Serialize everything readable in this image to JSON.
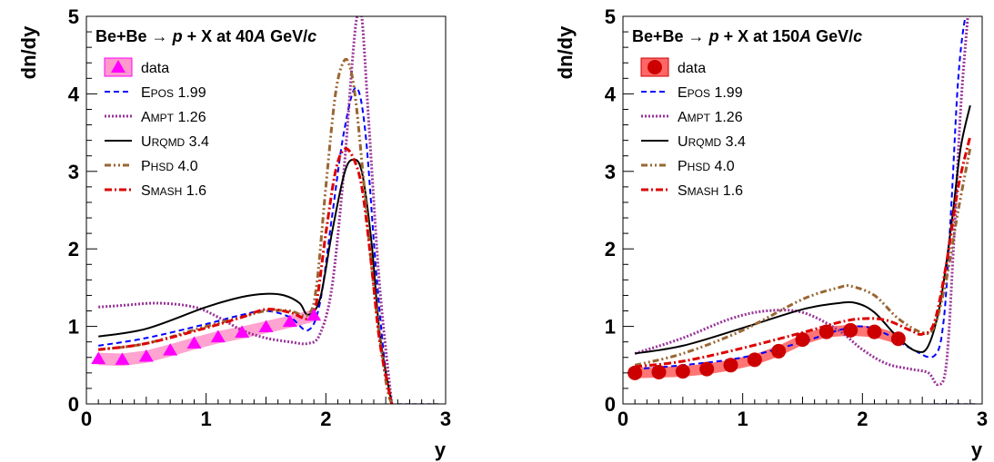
{
  "chart_data": [
    {
      "type": "line",
      "title_parts": [
        "Be+Be",
        "→",
        "p",
        "+ X at 40",
        "A",
        " GeV/",
        "c"
      ],
      "xlabel": "y",
      "ylabel": "dn/dy",
      "xlim": [
        0,
        3
      ],
      "ylim": [
        0,
        5
      ],
      "x_ticks": [
        "0",
        "1",
        "2",
        "3"
      ],
      "y_ticks": [
        "0",
        "1",
        "2",
        "3",
        "4",
        "5"
      ],
      "grid": false,
      "legend_position": "top-left",
      "legend": [
        {
          "label": "data",
          "style": "data"
        },
        {
          "label": "EPOS 1.99",
          "style": "EPOS"
        },
        {
          "label": "AMPT 1.26",
          "style": "AMPT"
        },
        {
          "label": "URQMD 3.4",
          "style": "URQMD"
        },
        {
          "label": "PHSD 4.0",
          "style": "PHSD"
        },
        {
          "label": "SMASH 1.6",
          "style": "SMASH"
        }
      ],
      "data": {
        "marker": "triangle",
        "color": "#ff00ff",
        "band_color": "#ff99cc",
        "x": [
          0.1,
          0.3,
          0.5,
          0.7,
          0.9,
          1.1,
          1.3,
          1.5,
          1.7,
          1.9
        ],
        "y": [
          0.58,
          0.57,
          0.61,
          0.69,
          0.78,
          0.86,
          0.92,
          0.99,
          1.06,
          1.14
        ],
        "band_halfwidth": 0.08
      },
      "series": [
        {
          "name": "EPOS",
          "color": "#0000ff",
          "dash": "6,4",
          "width": 2,
          "x": [
            0.1,
            0.5,
            1.0,
            1.3,
            1.5,
            1.7,
            1.85,
            1.95,
            2.05,
            2.15,
            2.25,
            2.33,
            2.42,
            2.5,
            2.55
          ],
          "y": [
            0.75,
            0.85,
            1.03,
            1.15,
            1.2,
            1.12,
            0.95,
            1.3,
            2.4,
            3.5,
            4.08,
            3.5,
            1.7,
            0.4,
            0.0
          ]
        },
        {
          "name": "AMPT",
          "color": "#993399",
          "dash": "2,2",
          "width": 3,
          "x": [
            0.1,
            0.3,
            0.6,
            0.9,
            1.1,
            1.3,
            1.5,
            1.7,
            1.85,
            1.95,
            2.05,
            2.15,
            2.22,
            2.26,
            2.3,
            2.36,
            2.45,
            2.55
          ],
          "y": [
            1.25,
            1.27,
            1.3,
            1.25,
            1.12,
            0.95,
            0.85,
            0.8,
            0.78,
            0.9,
            1.5,
            3.0,
            4.4,
            5.0,
            5.0,
            3.6,
            1.5,
            0.0
          ]
        },
        {
          "name": "URQMD",
          "color": "#000000",
          "dash": "",
          "width": 2,
          "x": [
            0.1,
            0.5,
            1.0,
            1.3,
            1.5,
            1.65,
            1.78,
            1.85,
            1.95,
            2.05,
            2.15,
            2.22,
            2.3,
            2.38,
            2.45,
            2.55
          ],
          "y": [
            0.87,
            0.97,
            1.25,
            1.38,
            1.42,
            1.4,
            1.3,
            1.15,
            1.35,
            2.2,
            2.95,
            3.15,
            3.0,
            2.1,
            0.9,
            0.0
          ]
        },
        {
          "name": "PHSD",
          "color": "#996633",
          "dash": "7,3,2,3,2,3",
          "width": 3,
          "x": [
            0.1,
            0.5,
            1.0,
            1.3,
            1.5,
            1.7,
            1.85,
            1.92,
            2.0,
            2.08,
            2.15,
            2.2,
            2.25,
            2.32,
            2.4,
            2.5,
            2.55
          ],
          "y": [
            0.7,
            0.78,
            1.0,
            1.12,
            1.2,
            1.2,
            1.15,
            1.5,
            2.8,
            4.0,
            4.42,
            4.35,
            3.9,
            2.8,
            1.5,
            0.3,
            0.0
          ]
        },
        {
          "name": "SMASH",
          "color": "#dd0000",
          "dash": "8,3,2,3",
          "width": 3,
          "x": [
            0.1,
            0.5,
            1.0,
            1.3,
            1.5,
            1.7,
            1.85,
            1.92,
            2.0,
            2.08,
            2.15,
            2.22,
            2.3,
            2.38,
            2.45,
            2.55
          ],
          "y": [
            0.7,
            0.78,
            0.98,
            1.12,
            1.22,
            1.18,
            1.1,
            1.3,
            2.2,
            3.0,
            3.28,
            3.2,
            2.8,
            1.8,
            0.8,
            0.0
          ]
        }
      ]
    },
    {
      "type": "line",
      "title_parts": [
        "Be+Be",
        "→",
        "p",
        "+ X at 150",
        "A",
        " GeV/",
        "c"
      ],
      "xlabel": "y",
      "ylabel": "dn/dy",
      "xlim": [
        0,
        3
      ],
      "ylim": [
        0,
        5
      ],
      "x_ticks": [
        "0",
        "1",
        "2",
        "3"
      ],
      "y_ticks": [
        "0",
        "1",
        "2",
        "3",
        "4",
        "5"
      ],
      "grid": false,
      "legend_position": "top-left",
      "legend": [
        {
          "label": "data",
          "style": "data"
        },
        {
          "label": "EPOS 1.99",
          "style": "EPOS"
        },
        {
          "label": "AMPT 1.26",
          "style": "AMPT"
        },
        {
          "label": "URQMD 3.4",
          "style": "URQMD"
        },
        {
          "label": "PHSD 4.0",
          "style": "PHSD"
        },
        {
          "label": "SMASH 1.6",
          "style": "SMASH"
        }
      ],
      "data": {
        "marker": "circle",
        "color": "#cc0000",
        "band_color": "#ff6666",
        "x": [
          0.1,
          0.3,
          0.5,
          0.7,
          0.9,
          1.1,
          1.3,
          1.5,
          1.7,
          1.9,
          2.1,
          2.3
        ],
        "y": [
          0.4,
          0.41,
          0.42,
          0.45,
          0.5,
          0.57,
          0.68,
          0.83,
          0.93,
          0.95,
          0.93,
          0.84
        ],
        "band_halfwidth": 0.07
      },
      "series": [
        {
          "name": "EPOS",
          "color": "#0000ff",
          "dash": "6,4",
          "width": 2,
          "x": [
            0.1,
            0.5,
            1.0,
            1.5,
            1.8,
            2.0,
            2.2,
            2.4,
            2.6,
            2.68,
            2.74,
            2.8,
            2.86,
            2.9
          ],
          "y": [
            0.45,
            0.5,
            0.6,
            0.8,
            0.95,
            1.0,
            0.9,
            0.72,
            0.62,
            1.1,
            2.5,
            4.2,
            5.0,
            5.0
          ]
        },
        {
          "name": "AMPT",
          "color": "#993399",
          "dash": "2,2",
          "width": 3,
          "x": [
            0.1,
            0.5,
            0.9,
            1.2,
            1.5,
            1.8,
            2.0,
            2.2,
            2.4,
            2.55,
            2.63,
            2.7,
            2.76,
            2.82,
            2.88
          ],
          "y": [
            0.65,
            0.85,
            1.1,
            1.2,
            1.18,
            0.95,
            0.7,
            0.52,
            0.45,
            0.4,
            0.25,
            0.5,
            2.0,
            3.8,
            5.0
          ]
        },
        {
          "name": "URQMD",
          "color": "#000000",
          "dash": "",
          "width": 2,
          "x": [
            0.1,
            0.5,
            1.0,
            1.5,
            1.8,
            1.95,
            2.1,
            2.3,
            2.45,
            2.55,
            2.65,
            2.75,
            2.82,
            2.9
          ],
          "y": [
            0.65,
            0.75,
            0.98,
            1.22,
            1.3,
            1.3,
            1.18,
            0.85,
            0.68,
            0.75,
            1.3,
            2.4,
            3.3,
            3.85
          ]
        },
        {
          "name": "PHSD",
          "color": "#996633",
          "dash": "7,3,2,3,2,3",
          "width": 3,
          "x": [
            0.1,
            0.5,
            1.0,
            1.5,
            1.8,
            1.9,
            2.1,
            2.3,
            2.5,
            2.6,
            2.7,
            2.8,
            2.9
          ],
          "y": [
            0.5,
            0.65,
            0.95,
            1.35,
            1.5,
            1.52,
            1.4,
            1.1,
            0.92,
            1.0,
            1.6,
            2.5,
            3.3
          ]
        },
        {
          "name": "SMASH",
          "color": "#dd0000",
          "dash": "8,3,2,3",
          "width": 3,
          "x": [
            0.1,
            0.5,
            1.0,
            1.5,
            1.8,
            2.0,
            2.2,
            2.4,
            2.5,
            2.6,
            2.7,
            2.8,
            2.9
          ],
          "y": [
            0.48,
            0.55,
            0.72,
            0.92,
            1.05,
            1.1,
            1.08,
            0.95,
            0.9,
            1.05,
            1.8,
            2.8,
            3.45
          ]
        }
      ]
    }
  ]
}
